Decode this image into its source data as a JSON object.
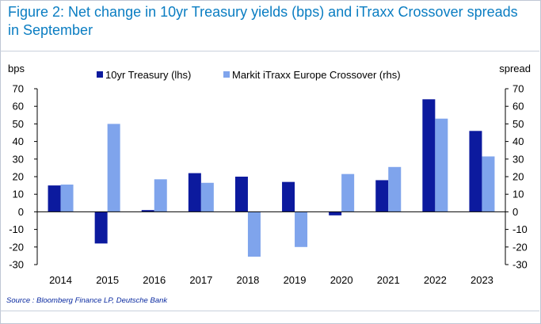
{
  "figure": {
    "title": "Figure 2: Net change in 10yr Treasury yields (bps) and iTraxx Crossover spreads in September",
    "source": "Source : Bloomberg Finance LP, Deutsche Bank"
  },
  "colors": {
    "title": "#0a7dc2",
    "series1": "#0c1a9e",
    "series2": "#7fa4ec",
    "source": "#0a2aa0"
  },
  "chart_data": {
    "type": "bar",
    "title": "Figure 2: Net change in 10yr Treasury yields (bps) and iTraxx Crossover spreads in September",
    "ylabel_left": "bps",
    "ylabel_right": "spread",
    "categories": [
      "2014",
      "2015",
      "2016",
      "2017",
      "2018",
      "2019",
      "2020",
      "2021",
      "2022",
      "2023"
    ],
    "series": [
      {
        "name": "10yr Treasury (lhs)",
        "axis": "left",
        "values": [
          15,
          -18,
          1,
          22,
          20,
          17,
          -2,
          18,
          64,
          46
        ]
      },
      {
        "name": "Markit iTraxx Europe Crossover (rhs)",
        "axis": "right",
        "values": [
          15.5,
          50,
          18.5,
          16.5,
          -25.5,
          -20,
          21.5,
          25.5,
          53,
          31.5
        ]
      }
    ],
    "ylim": [
      -30,
      70
    ],
    "yticks": [
      "-30",
      "-20",
      "-10",
      "0",
      "10",
      "20",
      "30",
      "40",
      "50",
      "60",
      "70"
    ],
    "legend": "top",
    "grid": false
  }
}
